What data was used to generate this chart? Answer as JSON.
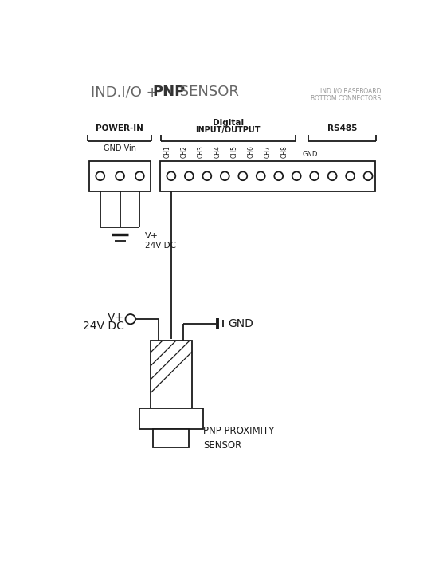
{
  "bg": "#ffffff",
  "lc": "#1a1a1a",
  "gc": "#888888",
  "title1": "IND.I/O + ",
  "title_bold": "PNP",
  "title2": " SENSOR",
  "sub1": "IND.I/O BASEBOARD",
  "sub2": "BOTTOM CONNECTORS",
  "label_pi": "POWER-IN",
  "label_dig1": "Digital",
  "label_dig2": "INPUT/OUTPUT",
  "label_rs": "RS485",
  "label_gnd_vin": "GND Vin",
  "ch_labels": [
    "CH1",
    "CH2",
    "CH3",
    "CH4",
    "CH5",
    "CH6",
    "CH7",
    "CH8",
    "GND"
  ],
  "label_vp1": "V+",
  "label_24v1": "24V DC",
  "label_vp2": "V+",
  "label_24v2": "24V DC",
  "label_gnd2": "GND",
  "label_sensor": "PNP PROXIMITY\nSENSOR",
  "figw": 5.41,
  "figh": 7.36,
  "dpi": 100
}
